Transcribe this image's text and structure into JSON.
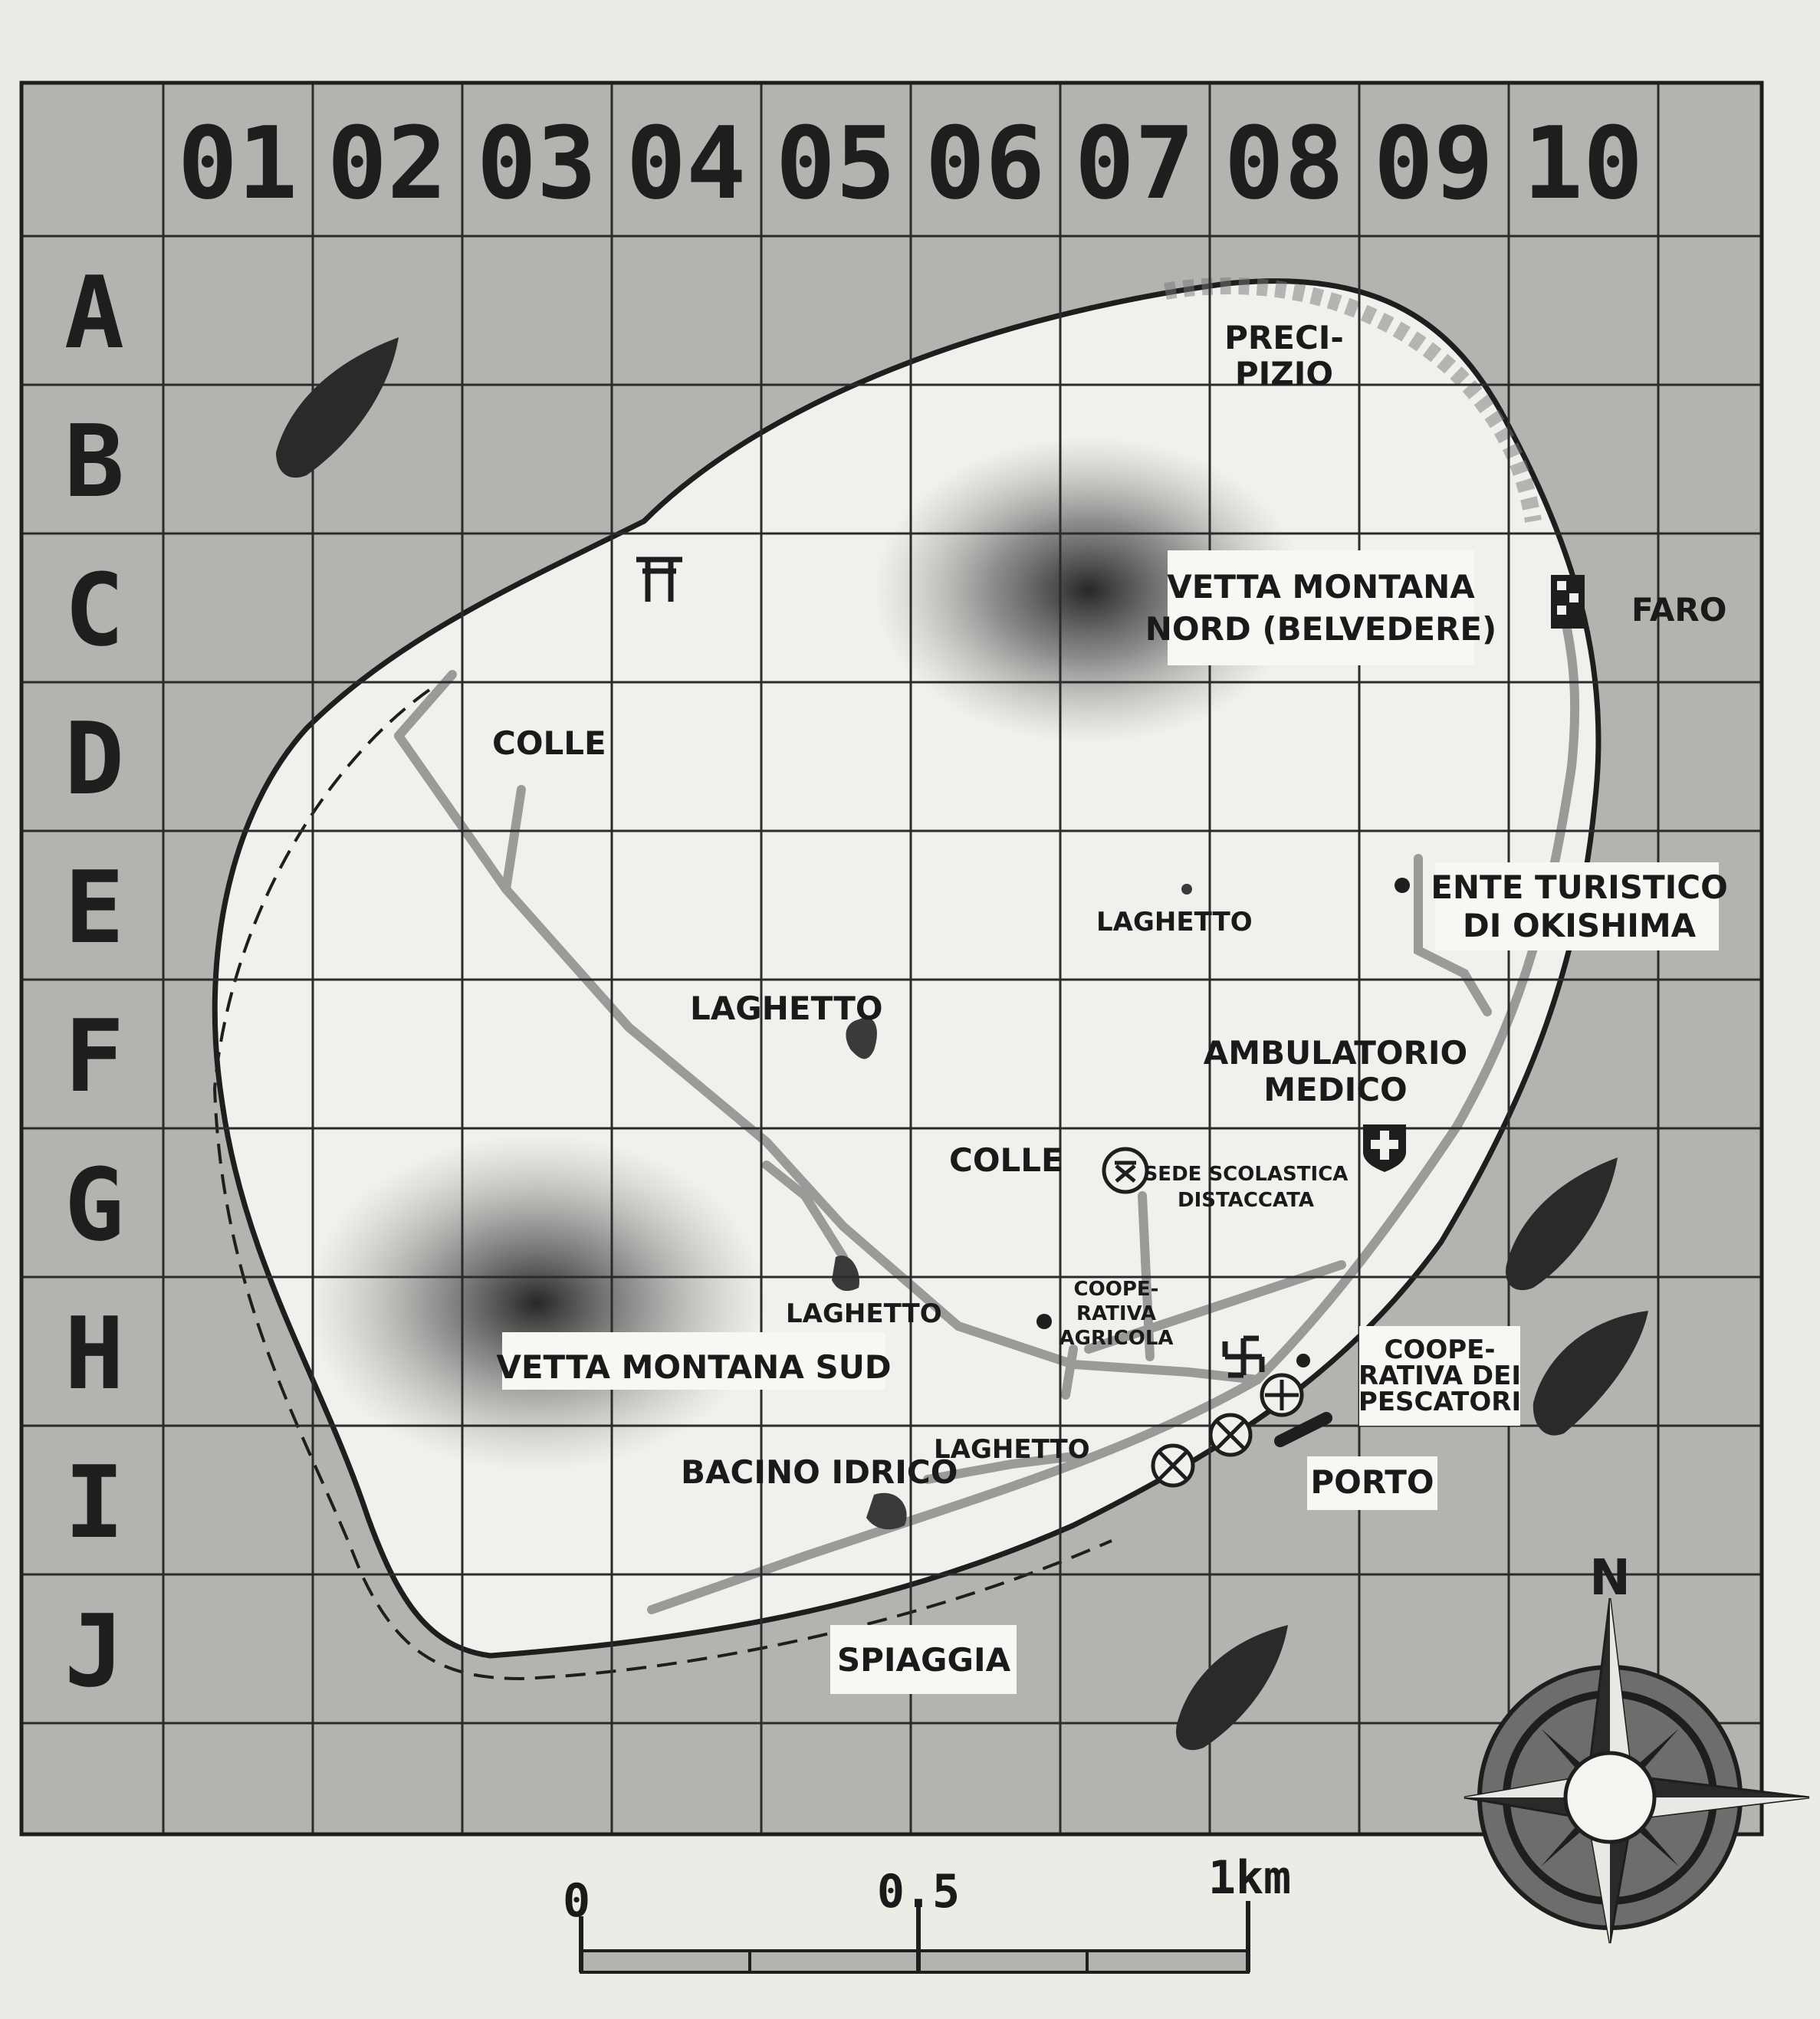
{
  "map": {
    "columns": [
      "01",
      "02",
      "03",
      "04",
      "05",
      "06",
      "07",
      "08",
      "09",
      "10"
    ],
    "rows": [
      "A",
      "B",
      "C",
      "D",
      "E",
      "F",
      "G",
      "H",
      "I",
      "J"
    ],
    "labels": {
      "precipizio_1": "PRECI-",
      "precipizio_2": "PIZIO",
      "vetta_nord_1": "VETTA MONTANA",
      "vetta_nord_2": "NORD (BELVEDERE)",
      "faro": "FARO",
      "colle_nw": "COLLE",
      "laghetto_e": "LAGHETTO",
      "ente_1": "ENTE TURISTICO",
      "ente_2": "DI OKISHIMA",
      "laghetto_f": "LAGHETTO",
      "ambulatorio_1": "AMBULATORIO",
      "ambulatorio_2": "MEDICO",
      "colle_g": "COLLE",
      "sede_1": "SEDE SCOLASTICA",
      "sede_2": "DISTACCATA",
      "coop_agr_1": "COOPE-",
      "coop_agr_2": "RATIVA",
      "coop_agr_3": "AGRICOLA",
      "laghetto_h": "LAGHETTO",
      "vetta_sud": "VETTA MONTANA SUD",
      "coop_pesc_1": "COOPE-",
      "coop_pesc_2": "RATIVA DEI",
      "coop_pesc_3": "PESCATORI",
      "laghetto_i": "LAGHETTO",
      "bacino": "BACINO IDRICO",
      "porto": "PORTO",
      "spiaggia": "SPIAGGIA",
      "north": "N"
    },
    "scale": {
      "zero": "0",
      "half": "0.5",
      "one": "1km"
    },
    "colors": {
      "sea": "#b3b3b0",
      "land": "#f1f0ec",
      "grid": "#2b2b2b",
      "ink": "#1e1e1e",
      "road": "#9a9a98"
    },
    "icons": [
      "torii-icon",
      "lighthouse-icon",
      "hospital-icon",
      "school-icon",
      "shrine-icon",
      "harbor-icon",
      "boat-icon",
      "compass-icon"
    ]
  }
}
